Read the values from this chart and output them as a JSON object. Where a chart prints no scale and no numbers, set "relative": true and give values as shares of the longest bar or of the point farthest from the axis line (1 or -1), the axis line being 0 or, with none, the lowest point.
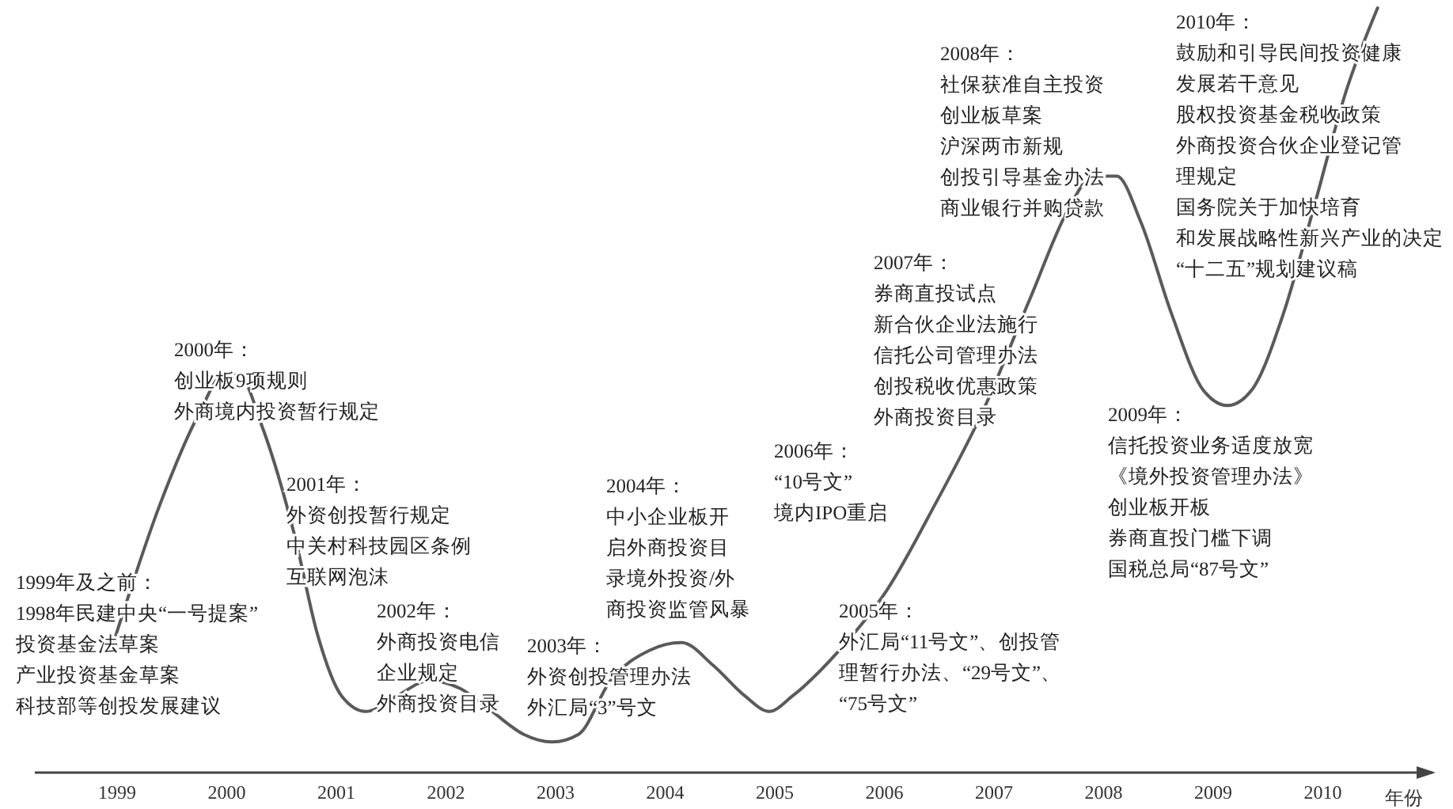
{
  "chart_data": {
    "type": "line",
    "relative": true,
    "xlabel": "年份",
    "xlim": [
      1998.25,
      2011
    ],
    "xticks": [
      1999,
      2000,
      2001,
      2002,
      2003,
      2004,
      2005,
      2006,
      2007,
      2008,
      2009,
      2010
    ],
    "grid": false,
    "marker": "none",
    "line_style": "solid",
    "series": [
      {
        "color": "#5a5a5a",
        "x": [
          1998.99,
          1999.39,
          1999.75,
          1999.97,
          2000.11,
          2000.33,
          2000.62,
          2000.83,
          2001.05,
          2001.27,
          2001.55,
          2001.84,
          2002.13,
          2002.42,
          2002.71,
          2002.97,
          2003.21,
          2003.5,
          2003.86,
          2004.15,
          2004.44,
          2004.73,
          2004.95,
          2005.16,
          2005.59,
          2006.03,
          2006.46,
          2006.89,
          2007.33,
          2007.69,
          2007.9,
          2008.12,
          2008.34,
          2008.62,
          2008.91,
          2009.13,
          2009.35,
          2009.64,
          2009.92,
          2010.21,
          2010.5
        ],
        "values": [
          0.18,
          0.35,
          0.47,
          0.52,
          0.52,
          0.45,
          0.31,
          0.18,
          0.1,
          0.08,
          0.1,
          0.12,
          0.11,
          0.08,
          0.05,
          0.04,
          0.05,
          0.12,
          0.16,
          0.17,
          0.14,
          0.1,
          0.08,
          0.1,
          0.16,
          0.24,
          0.35,
          0.47,
          0.62,
          0.74,
          0.78,
          0.78,
          0.72,
          0.6,
          0.5,
          0.48,
          0.5,
          0.6,
          0.74,
          0.89,
          1
        ]
      }
    ],
    "annotations": [
      "1999年及之前：",
      "1998年民建中央“一号提案”",
      "投资基金法草案",
      "产业投资基金草案",
      "科技部等创投发展建议",
      "2000年：",
      "创业板9项规则",
      "外商境内投资暂行规定",
      "2001年：",
      "外资创投暂行规定",
      "中关村科技园区条例",
      "互联网泡沫",
      "2002年：",
      "外商投资电信",
      "企业规定",
      "外商投资目录",
      "2003年：",
      "外资创投管理办法",
      "外汇局“3”号文",
      "2004年：",
      "中小企业板开",
      "启外商投资目",
      "录境外投资/外",
      "商投资监管风暴",
      "2005年：",
      "外汇局“11号文”、创投管",
      "理暂行办法、“29号文”、",
      "“75号文”",
      "2006年：",
      "“10号文”",
      "境内IPO重启",
      "2007年：",
      "券商直投试点",
      "新合伙企业法施行",
      "信托公司管理办法",
      "创投税收优惠政策",
      "外商投资目录",
      "2008年：",
      "社保获准自主投资",
      "创业板草案",
      "沪深两市新规",
      "创投引导基金办法",
      "商业银行并购贷款",
      "2009年：",
      "信托投资业务适度放宽",
      "《境外投资管理办法》",
      "创业板开板",
      "券商直投门槛下调",
      "国税总局“87号文”",
      "2010年：",
      "鼓励和引导民间投资健康",
      "发展若干意见",
      "股权投资基金税收政策",
      "外商投资合伙企业登记管",
      "理规定",
      "国务院关于加快培育",
      "和发展战略性新兴产业的决定",
      "“十二五”规划建议稿"
    ]
  }
}
